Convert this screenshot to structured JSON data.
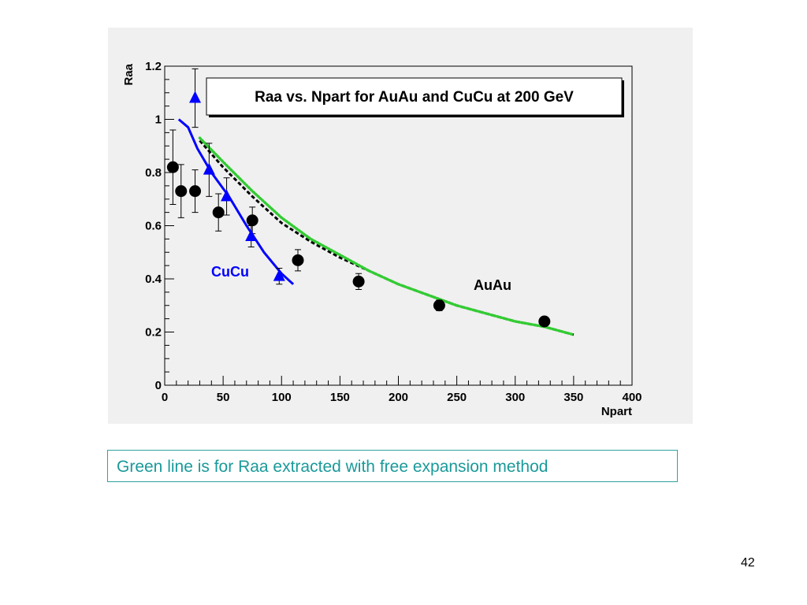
{
  "chart_data": {
    "type": "scatter",
    "title": "Raa vs. Npart for AuAu and CuCu at 200 GeV",
    "xlabel": "Npart",
    "ylabel": "Raa",
    "xlim": [
      0,
      400
    ],
    "ylim": [
      0,
      1.2
    ],
    "x_ticks": [
      "0",
      "50",
      "100",
      "150",
      "200",
      "250",
      "300",
      "350",
      "400"
    ],
    "y_ticks": [
      "0",
      "0.2",
      "0.4",
      "0.6",
      "0.8",
      "1",
      "1.2"
    ],
    "annotations": [
      "CuCu",
      "AuAu"
    ],
    "grid": false,
    "series": [
      {
        "marker": "circle",
        "color": "#000000",
        "points": [
          {
            "x": 7,
            "y": 0.82,
            "err": 0.14
          },
          {
            "x": 14,
            "y": 0.73,
            "err": 0.1
          },
          {
            "x": 26,
            "y": 0.73,
            "err": 0.08
          },
          {
            "x": 46,
            "y": 0.65,
            "err": 0.07
          },
          {
            "x": 75,
            "y": 0.62,
            "err": 0.05
          },
          {
            "x": 114,
            "y": 0.47,
            "err": 0.04
          },
          {
            "x": 166,
            "y": 0.39,
            "err": 0.03
          },
          {
            "x": 235,
            "y": 0.3,
            "err": 0.02
          },
          {
            "x": 325,
            "y": 0.24,
            "err": 0.015
          }
        ]
      },
      {
        "marker": "triangle",
        "color": "#0000ff",
        "points": [
          {
            "x": 26,
            "y": 1.08,
            "err": 0.11
          },
          {
            "x": 38,
            "y": 0.81,
            "err": 0.1
          },
          {
            "x": 53,
            "y": 0.71,
            "err": 0.07
          },
          {
            "x": 74,
            "y": 0.56,
            "err": 0.04
          },
          {
            "x": 98,
            "y": 0.41,
            "err": 0.03
          }
        ]
      },
      {
        "style": "solid-line",
        "color": "#0000ff",
        "x": [
          12,
          20,
          28,
          40,
          55,
          70,
          85,
          100,
          110
        ],
        "y": [
          1.0,
          0.97,
          0.89,
          0.8,
          0.71,
          0.6,
          0.5,
          0.42,
          0.38
        ]
      },
      {
        "style": "dashed-line",
        "color": "#000000",
        "x": [
          30,
          50,
          75,
          100,
          125,
          150,
          175,
          200,
          225,
          250,
          275,
          300,
          325,
          350
        ],
        "y": [
          0.92,
          0.82,
          0.71,
          0.61,
          0.54,
          0.48,
          0.43,
          0.38,
          0.34,
          0.3,
          0.27,
          0.24,
          0.22,
          0.19
        ]
      },
      {
        "style": "dotted-line",
        "color": "#33cc33",
        "x": [
          30,
          50,
          75,
          100,
          125,
          150,
          175,
          200,
          225,
          250,
          275,
          300,
          325,
          350
        ],
        "y": [
          0.93,
          0.84,
          0.73,
          0.63,
          0.55,
          0.49,
          0.43,
          0.38,
          0.34,
          0.3,
          0.27,
          0.24,
          0.22,
          0.19
        ]
      }
    ]
  },
  "note": {
    "text": "Green line is for Raa extracted with free expansion method",
    "color": "#1a9a9a"
  },
  "page": {
    "number": "42"
  }
}
